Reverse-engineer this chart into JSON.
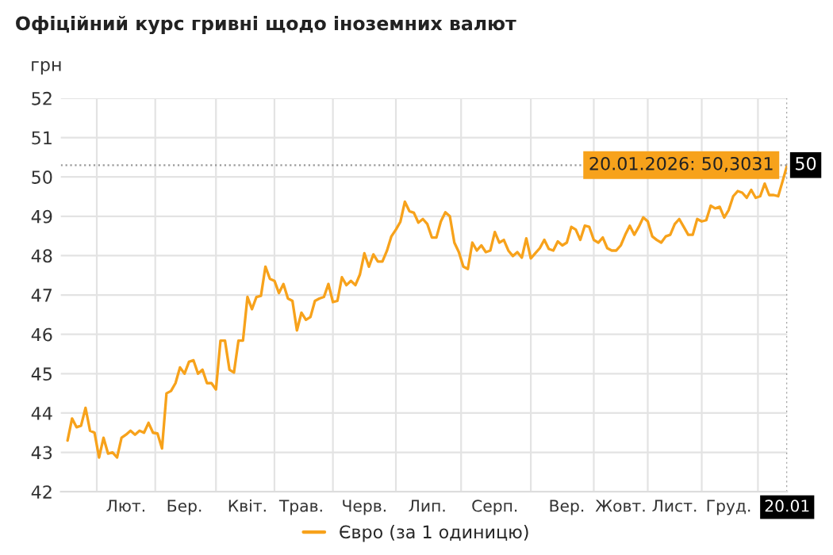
{
  "chart_data": {
    "type": "line",
    "title": "Офіційний курс гривні щодо іноземних валют",
    "ylabel": "грн",
    "categories": [
      null,
      null,
      null,
      null,
      null,
      null,
      null,
      null,
      null,
      null,
      null,
      null,
      null,
      "Лют.",
      null,
      null,
      null,
      null,
      null,
      null,
      null,
      null,
      null,
      null,
      null,
      null,
      "Бер.",
      null,
      null,
      null,
      null,
      null,
      null,
      null,
      null,
      null,
      null,
      null,
      null,
      null,
      "Квіт.",
      null,
      null,
      null,
      null,
      null,
      null,
      null,
      null,
      null,
      null,
      null,
      "Трав.",
      null,
      null,
      null,
      null,
      null,
      null,
      null,
      null,
      null,
      null,
      null,
      null,
      null,
      "Черв.",
      null,
      null,
      null,
      null,
      null,
      null,
      null,
      null,
      null,
      null,
      null,
      null,
      null,
      "Лип.",
      null,
      null,
      null,
      null,
      null,
      null,
      null,
      null,
      null,
      null,
      null,
      null,
      null,
      null,
      "Серп.",
      null,
      null,
      null,
      null,
      null,
      null,
      null,
      null,
      null,
      null,
      null,
      null,
      null,
      null,
      null,
      "Вер.",
      null,
      null,
      null,
      null,
      null,
      null,
      null,
      null,
      null,
      null,
      null,
      "Жовт.",
      null,
      null,
      null,
      null,
      null,
      null,
      null,
      null,
      null,
      null,
      null,
      "Лист.",
      null,
      null,
      null,
      null,
      null,
      null,
      null,
      null,
      null,
      null,
      null,
      "Груд.",
      null,
      null,
      null,
      null,
      null,
      null,
      null,
      null,
      null,
      null,
      null,
      null,
      "20.01"
    ],
    "series": [
      {
        "name": "Євро (за 1 одиницю)",
        "color": "#f7a21b",
        "values": [
          43.3,
          43.86,
          43.64,
          43.68,
          44.13,
          43.55,
          43.5,
          42.87,
          43.37,
          42.97,
          43.0,
          42.87,
          43.37,
          43.45,
          43.55,
          43.45,
          43.55,
          43.5,
          43.75,
          43.5,
          43.48,
          43.1,
          44.5,
          44.56,
          44.76,
          45.16,
          45.0,
          45.3,
          45.34,
          45.0,
          45.1,
          44.76,
          44.76,
          44.6,
          45.84,
          45.84,
          45.1,
          45.03,
          45.84,
          45.84,
          46.95,
          46.64,
          46.95,
          46.98,
          47.72,
          47.41,
          47.36,
          47.05,
          47.28,
          46.91,
          46.85,
          46.1,
          46.55,
          46.37,
          46.44,
          46.85,
          46.91,
          46.95,
          47.28,
          46.82,
          46.85,
          47.45,
          47.25,
          47.36,
          47.25,
          47.52,
          48.06,
          47.72,
          48.03,
          47.85,
          47.85,
          48.12,
          48.49,
          48.66,
          48.86,
          49.37,
          49.13,
          49.09,
          48.84,
          48.93,
          48.8,
          48.46,
          48.46,
          48.87,
          49.1,
          49.0,
          48.33,
          48.09,
          47.72,
          47.66,
          48.33,
          48.13,
          48.26,
          48.09,
          48.13,
          48.6,
          48.33,
          48.4,
          48.13,
          47.99,
          48.09,
          47.95,
          48.44,
          47.93,
          48.06,
          48.19,
          48.4,
          48.17,
          48.13,
          48.36,
          48.26,
          48.33,
          48.73,
          48.66,
          48.4,
          48.76,
          48.73,
          48.4,
          48.33,
          48.46,
          48.19,
          48.13,
          48.13,
          48.26,
          48.53,
          48.76,
          48.53,
          48.73,
          48.97,
          48.87,
          48.49,
          48.4,
          48.33,
          48.49,
          48.53,
          48.8,
          48.93,
          48.73,
          48.53,
          48.53,
          48.93,
          48.87,
          48.9,
          49.27,
          49.2,
          49.24,
          48.97,
          49.16,
          49.51,
          49.64,
          49.6,
          49.47,
          49.67,
          49.47,
          49.51,
          49.83,
          49.54,
          49.54,
          49.51,
          49.9,
          50.3
        ]
      }
    ],
    "ylim": [
      42,
      52
    ],
    "yticks": [
      42,
      43,
      44,
      45,
      46,
      47,
      48,
      49,
      50,
      51,
      52
    ],
    "ref_lines": [
      {
        "axis": "y",
        "value": 50.3,
        "label": "50",
        "color": "#999999",
        "line_style": "dotted"
      },
      {
        "axis": "x",
        "value": "20.01",
        "color": "#999999",
        "line_style": "dotted"
      }
    ],
    "annotations": [
      {
        "text": "20.01.2026: 50,3031",
        "x": "20.01",
        "y": 50.3
      }
    ],
    "grid": true,
    "legend": "bottom",
    "marker": "none",
    "line_style": "solid"
  }
}
